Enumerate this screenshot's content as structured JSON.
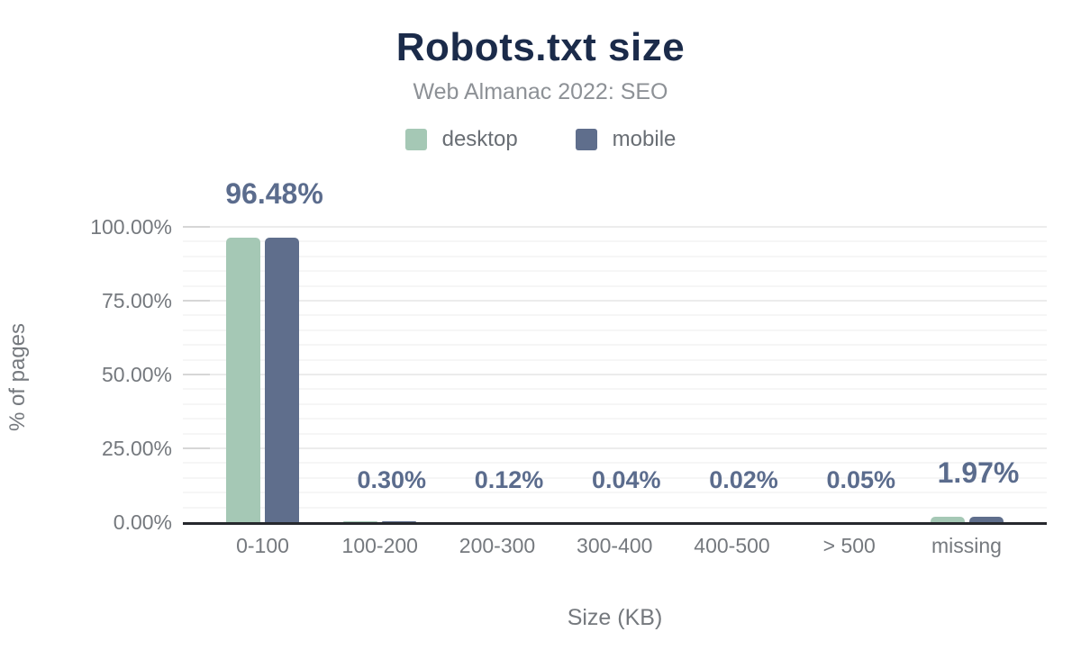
{
  "chart_data": {
    "type": "bar",
    "title": "Robots.txt size",
    "subtitle": "Web Almanac 2022: SEO",
    "xlabel": "Size (KB)",
    "ylabel": "% of pages",
    "categories": [
      "0-100",
      "100-200",
      "200-300",
      "300-400",
      "400-500",
      "> 500",
      "missing"
    ],
    "series": [
      {
        "name": "desktop",
        "color": "#a5c8b5",
        "values": [
          96.48,
          0.3,
          0.12,
          0.04,
          0.02,
          0.05,
          1.97
        ]
      },
      {
        "name": "mobile",
        "color": "#5f6e8c",
        "values": [
          96.48,
          0.3,
          0.12,
          0.04,
          0.02,
          0.05,
          1.97
        ]
      }
    ],
    "data_labels": [
      "96.48%",
      "0.30%",
      "0.12%",
      "0.04%",
      "0.02%",
      "0.05%",
      "1.97%"
    ],
    "y_ticks": [
      {
        "value": 0,
        "label": "0.00%"
      },
      {
        "value": 25,
        "label": "25.00%"
      },
      {
        "value": 50,
        "label": "50.00%"
      },
      {
        "value": 75,
        "label": "75.00%"
      },
      {
        "value": 100,
        "label": "100.00%"
      }
    ],
    "ylim": [
      0,
      100
    ],
    "grid": {
      "minor_step_pct": 5,
      "major_step_pct": 25,
      "orientation": "horizontal"
    },
    "legend_position": "top"
  },
  "colors": {
    "background": "#ffffff",
    "title": "#1b2b4a",
    "subtitle": "#8d9196",
    "axis_text": "#75797e",
    "legend_text": "#696e74",
    "axis_line": "#26282d",
    "grid_minor": "#f6f6f6",
    "grid_major": "#ececec",
    "tick": "#d6d6d6",
    "data_label": "#5b6c8d"
  }
}
